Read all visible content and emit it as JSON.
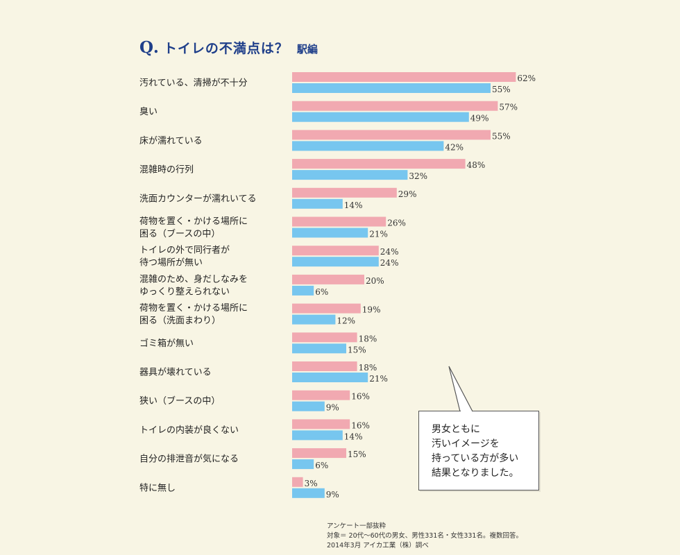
{
  "title": {
    "q": "Q.",
    "main": "トイレの不満点は？",
    "sub": "駅編"
  },
  "colors": {
    "background": "#f8f5e4",
    "series1": "#f1a9b1",
    "series2": "#77c6ef",
    "title": "#1f3f8a"
  },
  "chart_data": {
    "type": "bar",
    "orientation": "horizontal",
    "categories": [
      "汚れている、清掃が不十分",
      "臭い",
      "床が濡れている",
      "混雑時の行列",
      "洗面カウンターが濡れいてる",
      "荷物を置く・かける場所に\n困る（ブースの中）",
      "トイレの外で同行者が\n待つ場所が無い",
      "混雑のため、身だしなみを\nゆっくり整えられない",
      "荷物を置く・かける場所に\n困る（洗面まわり）",
      "ゴミ箱が無い",
      "器具が壊れている",
      "狭い（ブースの中）",
      "トイレの内装が良くない",
      "自分の排泄音が気になる",
      "特に無し"
    ],
    "series": [
      {
        "values": [
          62,
          57,
          55,
          48,
          29,
          26,
          24,
          20,
          19,
          18,
          18,
          16,
          16,
          15,
          3
        ]
      },
      {
        "values": [
          55,
          49,
          42,
          32,
          14,
          21,
          24,
          6,
          12,
          15,
          21,
          9,
          14,
          6,
          9
        ]
      }
    ],
    "value_suffix": "%",
    "xlim": [
      0,
      100
    ]
  },
  "callout": {
    "lines": [
      "男女ともに",
      "汚いイメージを",
      "持っている方が多い",
      "結果となりました。"
    ]
  },
  "footnote": {
    "line1": "アンケート一部抜粋",
    "line2": "対象＝ 20代～60代の男女、男性331名・女性331名。複数回答。",
    "line3": "2014年3月 アイカ工業（株）調べ"
  }
}
